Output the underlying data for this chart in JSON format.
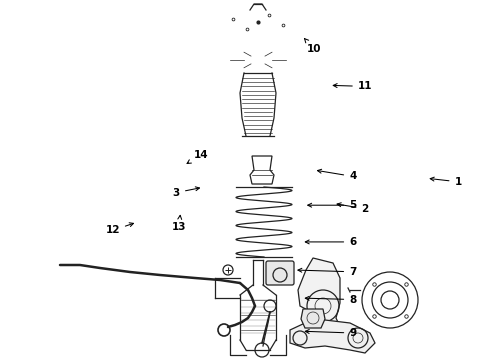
{
  "bg_color": "#ffffff",
  "line_color": "#222222",
  "fig_width": 4.9,
  "fig_height": 3.6,
  "dpi": 100,
  "label_params": {
    "1": [
      0.935,
      0.505,
      0.87,
      0.495
    ],
    "2": [
      0.745,
      0.58,
      0.68,
      0.565
    ],
    "3": [
      0.36,
      0.535,
      0.415,
      0.52
    ],
    "4": [
      0.72,
      0.49,
      0.64,
      0.472
    ],
    "5": [
      0.72,
      0.57,
      0.62,
      0.57
    ],
    "6": [
      0.72,
      0.672,
      0.615,
      0.672
    ],
    "7": [
      0.72,
      0.755,
      0.6,
      0.75
    ],
    "8": [
      0.72,
      0.832,
      0.615,
      0.828
    ],
    "9": [
      0.72,
      0.925,
      0.615,
      0.92
    ],
    "10": [
      0.64,
      0.135,
      0.62,
      0.105
    ],
    "11": [
      0.745,
      0.24,
      0.672,
      0.237
    ],
    "12": [
      0.23,
      0.64,
      0.28,
      0.617
    ],
    "13": [
      0.365,
      0.63,
      0.368,
      0.595
    ],
    "14": [
      0.41,
      0.43,
      0.375,
      0.46
    ]
  }
}
